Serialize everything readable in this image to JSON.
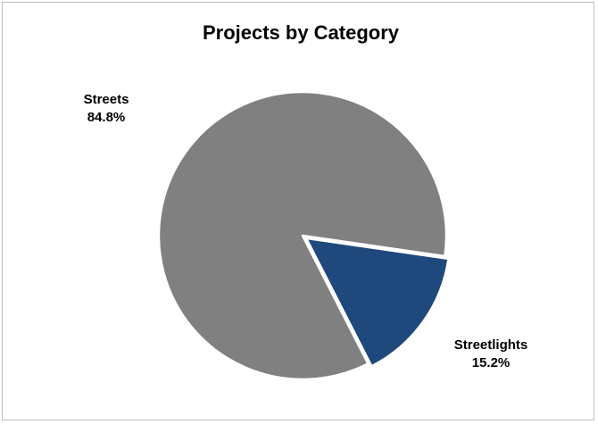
{
  "chart_data": {
    "type": "pie",
    "title": "Projects by Category",
    "slices": [
      {
        "name": "Streets",
        "value": 84.8,
        "label": "84.8%",
        "color": "#808080"
      },
      {
        "name": "Streetlights",
        "value": 15.2,
        "label": "15.2%",
        "color": "#1f497d"
      }
    ],
    "legend": "none",
    "slice_border_color": "#ffffff"
  }
}
